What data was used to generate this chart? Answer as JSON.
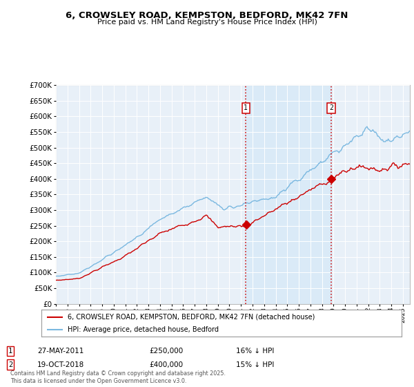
{
  "title": "6, CROWSLEY ROAD, KEMPSTON, BEDFORD, MK42 7FN",
  "subtitle": "Price paid vs. HM Land Registry's House Price Index (HPI)",
  "ylabel_end": 700000,
  "ylabel_step": 50000,
  "xstart_year": 1995,
  "xend_year": 2025,
  "sale1_date": 2011.42,
  "sale1_price": 250000,
  "sale1_label": "1",
  "sale2_date": 2018.8,
  "sale2_price": 400000,
  "sale2_label": "2",
  "legend_line1": "6, CROWSLEY ROAD, KEMPSTON, BEDFORD, MK42 7FN (detached house)",
  "legend_line2": "HPI: Average price, detached house, Bedford",
  "row1_date": "27-MAY-2011",
  "row1_price": "£250,000",
  "row1_pct": "16% ↓ HPI",
  "row2_date": "19-OCT-2018",
  "row2_price": "£400,000",
  "row2_pct": "15% ↓ HPI",
  "footer": "Contains HM Land Registry data © Crown copyright and database right 2025.\nThis data is licensed under the Open Government Licence v3.0.",
  "hpi_color": "#7ab8e0",
  "sale_color": "#cc0000",
  "dashed_color": "#cc0000",
  "shade_color": "#d8eaf7",
  "background_plot": "#e8f0f8",
  "background_fig": "#ffffff",
  "grid_color": "#ffffff",
  "border_color": "#bbbbbb"
}
